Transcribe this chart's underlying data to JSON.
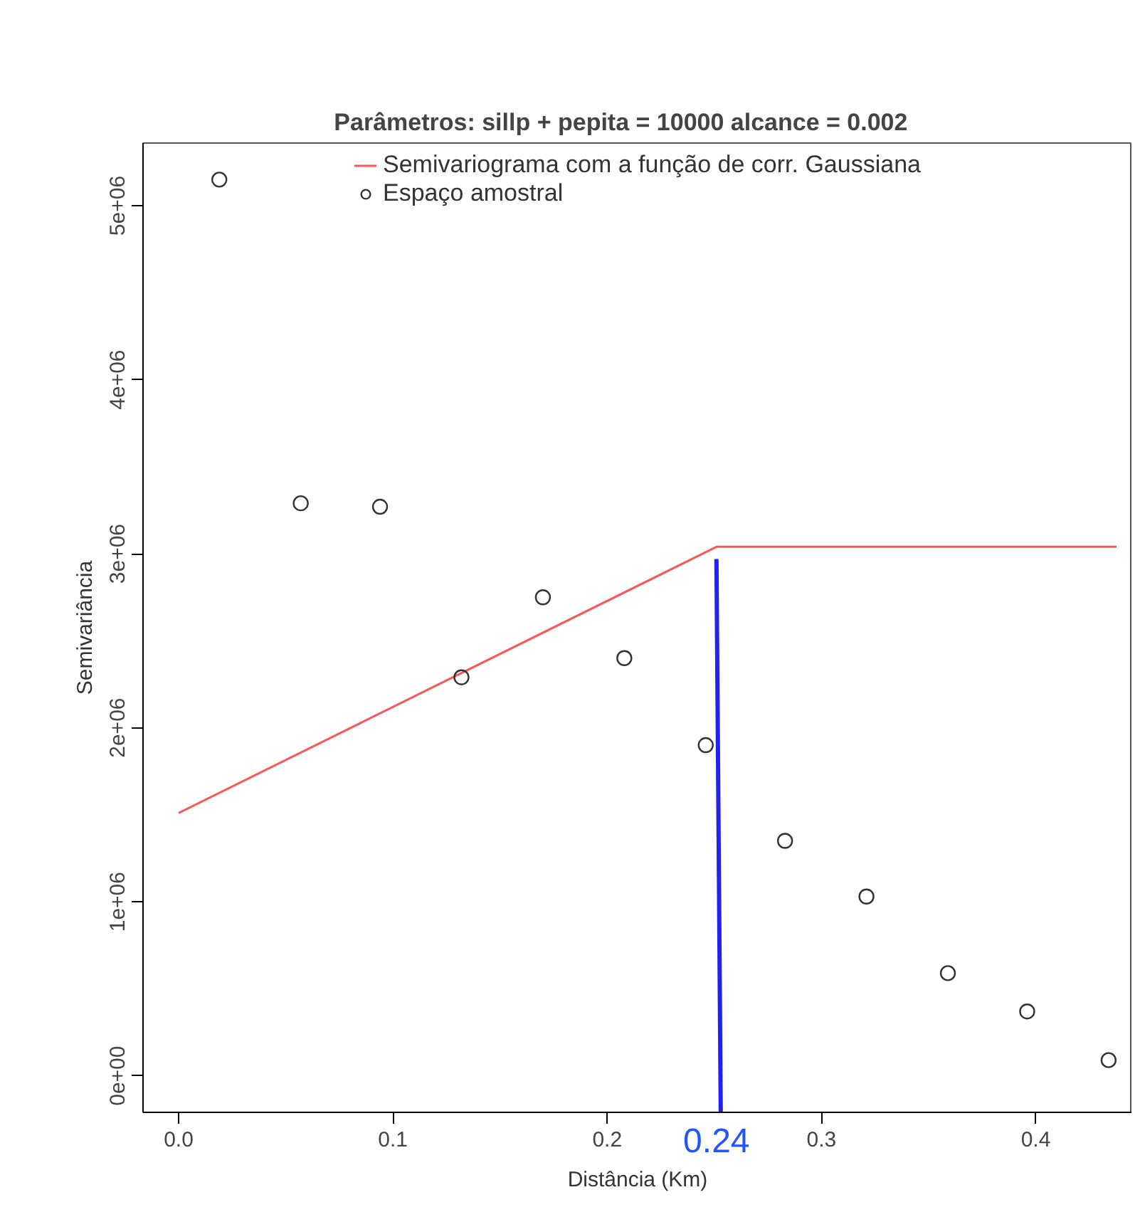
{
  "chart_data": {
    "type": "scatter",
    "title": "Parâmetros: sillp + pepita = 10000      alcance = 0.002",
    "xlabel": "Distância (Km)",
    "ylabel": "Semivariância",
    "xlim": [
      -0.0166,
      0.445
    ],
    "ylim": [
      -210000,
      5360000
    ],
    "xticks": [
      {
        "value": 0,
        "label": "0.0"
      },
      {
        "value": 0.1,
        "label": "0.1"
      },
      {
        "value": 0.2,
        "label": "0.2"
      },
      {
        "value": 0.3,
        "label": "0.3"
      },
      {
        "value": 0.4,
        "label": "0.4"
      }
    ],
    "yticks": [
      {
        "value": 0,
        "label": "0e+00"
      },
      {
        "value": 1000000,
        "label": "1e+06"
      },
      {
        "value": 2000000,
        "label": "2e+06"
      },
      {
        "value": 3000000,
        "label": "3e+06"
      },
      {
        "value": 4000000,
        "label": "4e+06"
      },
      {
        "value": 5000000,
        "label": "5e+06"
      }
    ],
    "grid": false,
    "legend": "top",
    "series": [
      {
        "name": "Semivariograma com a função de corr. Gaussiana",
        "type": "line",
        "color": "#ff5555",
        "line_style": "solid",
        "x": [
          0,
          0.251,
          0.4377
        ],
        "values": [
          1510000,
          3040000,
          3040000
        ]
      },
      {
        "name": "Espaço amostral",
        "marker": "circle",
        "color": "#333333",
        "x": [
          0.019,
          0.057,
          0.094,
          0.132,
          0.17,
          0.208,
          0.246,
          0.283,
          0.321,
          0.359,
          0.396,
          0.434
        ],
        "values": [
          5150000,
          3290000,
          3270000,
          2290000,
          2750000,
          2400000,
          1900000,
          1350000,
          1030000,
          590000,
          370000,
          90000
        ]
      },
      {
        "type": "line",
        "color": "#2222ee",
        "line_style": "solid",
        "x": [
          0.251,
          0.253
        ],
        "values": [
          2970000,
          -210000
        ]
      }
    ],
    "annotations": [
      "0.24"
    ]
  }
}
